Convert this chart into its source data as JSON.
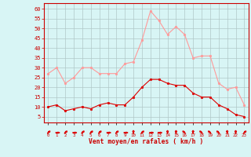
{
  "hours": [
    0,
    1,
    2,
    3,
    4,
    5,
    6,
    7,
    8,
    9,
    10,
    11,
    12,
    13,
    14,
    15,
    16,
    17,
    18,
    19,
    20,
    21,
    22,
    23
  ],
  "wind_avg": [
    10,
    11,
    8,
    9,
    10,
    9,
    11,
    12,
    11,
    11,
    15,
    20,
    24,
    24,
    22,
    21,
    21,
    17,
    15,
    15,
    11,
    9,
    6,
    5
  ],
  "wind_gust": [
    27,
    30,
    22,
    25,
    30,
    30,
    27,
    27,
    27,
    32,
    33,
    44,
    59,
    54,
    47,
    51,
    47,
    35,
    36,
    36,
    22,
    19,
    20,
    11
  ],
  "bg_color": "#d8f5f5",
  "grid_color": "#b0c8c8",
  "avg_color": "#dd0000",
  "gust_color": "#ff9999",
  "xlabel": "Vent moyen/en rafales ( km/h )",
  "xlabel_color": "#cc0000",
  "yticks": [
    5,
    10,
    15,
    20,
    25,
    30,
    35,
    40,
    45,
    50,
    55,
    60
  ],
  "ylim": [
    2,
    63
  ],
  "xlim": [
    -0.5,
    23.5
  ],
  "arrow_angles": [
    45,
    90,
    45,
    90,
    45,
    45,
    45,
    90,
    45,
    90,
    0,
    45,
    90,
    90,
    0,
    0,
    315,
    0,
    315,
    315,
    315,
    0,
    0,
    45
  ]
}
